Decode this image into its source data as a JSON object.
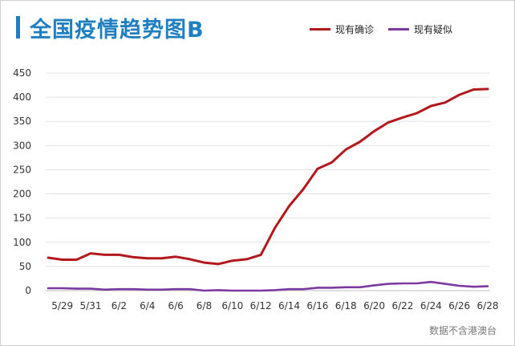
{
  "title": "全国疫情趋势图B",
  "source_note": "数据不含港澳台",
  "colors": {
    "accent": "#1f7fc1",
    "confirmed": "#b3191c",
    "suspected": "#7a3aa0",
    "grid": "#e3e3e3"
  },
  "chart_data": {
    "type": "line",
    "title": "全国疫情趋势图B",
    "legend_position": "top-right",
    "grid": true,
    "ylim": [
      0,
      450
    ],
    "yticks": [
      0,
      50,
      100,
      150,
      200,
      250,
      300,
      350,
      400,
      450
    ],
    "x": [
      "5/28",
      "5/29",
      "5/30",
      "5/31",
      "6/1",
      "6/2",
      "6/3",
      "6/4",
      "6/5",
      "6/6",
      "6/7",
      "6/8",
      "6/9",
      "6/10",
      "6/11",
      "6/12",
      "6/13",
      "6/14",
      "6/15",
      "6/16",
      "6/17",
      "6/18",
      "6/19",
      "6/20",
      "6/21",
      "6/22",
      "6/23",
      "6/24",
      "6/25",
      "6/26",
      "6/27",
      "6/28"
    ],
    "xtick_labels": [
      "5/29",
      "5/31",
      "6/2",
      "6/4",
      "6/6",
      "6/8",
      "6/10",
      "6/12",
      "6/14",
      "6/16",
      "6/18",
      "6/20",
      "6/22",
      "6/24",
      "6/26",
      "6/28"
    ],
    "series": [
      {
        "name": "现有确诊",
        "color": "#b3191c",
        "values": [
          68,
          64,
          64,
          77,
          74,
          74,
          69,
          67,
          67,
          70,
          65,
          58,
          55,
          62,
          65,
          74,
          130,
          175,
          210,
          252,
          265,
          292,
          308,
          330,
          348,
          358,
          367,
          382,
          389,
          405,
          416,
          417
        ]
      },
      {
        "name": "现有疑似",
        "color": "#7a3aa0",
        "values": [
          5,
          5,
          4,
          4,
          2,
          3,
          3,
          2,
          2,
          3,
          3,
          0,
          1,
          0,
          0,
          0,
          1,
          3,
          3,
          6,
          6,
          7,
          7,
          11,
          14,
          15,
          15,
          18,
          14,
          10,
          8,
          9
        ]
      }
    ]
  }
}
